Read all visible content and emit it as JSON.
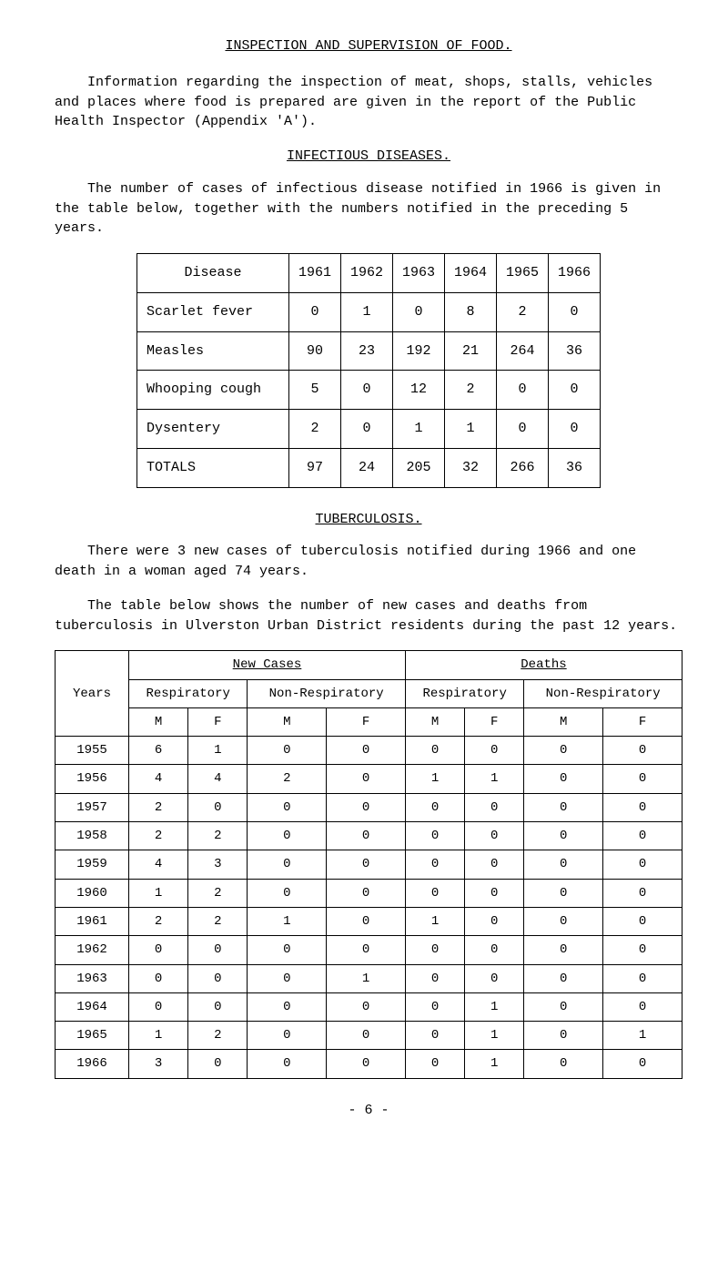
{
  "headings": {
    "main_title": "INSPECTION AND SUPERVISION OF FOOD.",
    "infectious": "INFECTIOUS DISEASES.",
    "tb": "TUBERCULOSIS."
  },
  "paragraphs": {
    "p1": "Information regarding the inspection of meat, shops, stalls, vehicles and places where food is prepared are given in the report of the Public Health Inspector (Appendix 'A').",
    "p2": "The number of cases of infectious disease notified in 1966 is given in the table below, together with the numbers notified in the preceding 5 years.",
    "p3": "There were 3 new cases of tuberculosis notified during 1966 and one death in a woman aged 74 years.",
    "p4": "The table below shows the number of new cases and deaths from tuberculosis in Ulverston Urban District residents during the past 12 years."
  },
  "table1": {
    "col_headers": [
      "Disease",
      "1961",
      "1962",
      "1963",
      "1964",
      "1965",
      "1966"
    ],
    "rows": [
      [
        "Scarlet fever",
        "0",
        "1",
        "0",
        "8",
        "2",
        "0"
      ],
      [
        "Measles",
        "90",
        "23",
        "192",
        "21",
        "264",
        "36"
      ],
      [
        "Whooping cough",
        "5",
        "0",
        "12",
        "2",
        "0",
        "0"
      ],
      [
        "Dysentery",
        "2",
        "0",
        "1",
        "1",
        "0",
        "0"
      ],
      [
        "TOTALS",
        "97",
        "24",
        "205",
        "32",
        "266",
        "36"
      ]
    ]
  },
  "table2": {
    "top_headers": {
      "years": "Years",
      "new_cases": "New Cases",
      "deaths": "Deaths",
      "resp": "Respiratory",
      "nonresp": "Non-Respiratory",
      "m": "M",
      "f": "F"
    },
    "rows": [
      [
        "1955",
        "6",
        "1",
        "0",
        "0",
        "0",
        "0",
        "0",
        "0"
      ],
      [
        "1956",
        "4",
        "4",
        "2",
        "0",
        "1",
        "1",
        "0",
        "0"
      ],
      [
        "1957",
        "2",
        "0",
        "0",
        "0",
        "0",
        "0",
        "0",
        "0"
      ],
      [
        "1958",
        "2",
        "2",
        "0",
        "0",
        "0",
        "0",
        "0",
        "0"
      ],
      [
        "1959",
        "4",
        "3",
        "0",
        "0",
        "0",
        "0",
        "0",
        "0"
      ],
      [
        "1960",
        "1",
        "2",
        "0",
        "0",
        "0",
        "0",
        "0",
        "0"
      ],
      [
        "1961",
        "2",
        "2",
        "1",
        "0",
        "1",
        "0",
        "0",
        "0"
      ],
      [
        "1962",
        "0",
        "0",
        "0",
        "0",
        "0",
        "0",
        "0",
        "0"
      ],
      [
        "1963",
        "0",
        "0",
        "0",
        "1",
        "0",
        "0",
        "0",
        "0"
      ],
      [
        "1964",
        "0",
        "0",
        "0",
        "0",
        "0",
        "1",
        "0",
        "0"
      ],
      [
        "1965",
        "1",
        "2",
        "0",
        "0",
        "0",
        "1",
        "0",
        "1"
      ],
      [
        "1966",
        "3",
        "0",
        "0",
        "0",
        "0",
        "1",
        "0",
        "0"
      ]
    ]
  },
  "pagenum": "- 6 -"
}
